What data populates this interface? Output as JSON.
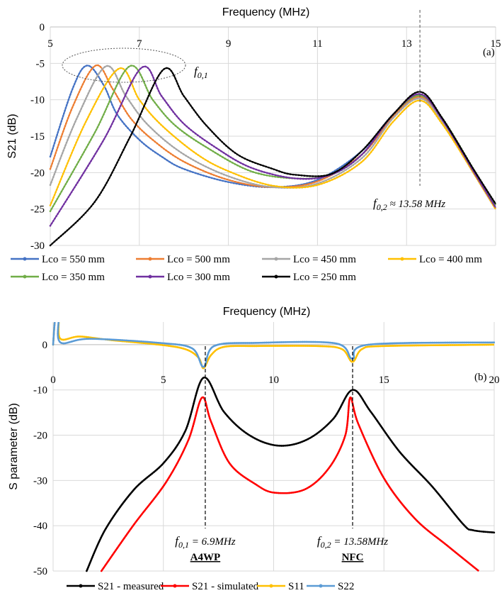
{
  "chart_data": [
    {
      "panel": "(a)",
      "type": "line",
      "title": "Frequency (MHz)",
      "xlabel": "Frequency (MHz)",
      "ylabel": "S21 (dB)",
      "xlim": [
        5,
        15
      ],
      "ylim": [
        -30,
        0
      ],
      "xticks": [
        5,
        7,
        9,
        11,
        13,
        15
      ],
      "yticks": [
        0,
        -5,
        -10,
        -15,
        -20,
        -25,
        -30
      ],
      "grid": true,
      "legend_position": "bottom",
      "annotations": {
        "f01": {
          "symbol": "f",
          "sub": "0,1",
          "rest": ""
        },
        "f02": {
          "symbol": "f",
          "sub": "0,2",
          "rest": " ≈ 13.58 MHz"
        },
        "f02_marker_x": 13.3
      },
      "series": [
        {
          "name": "Lco = 550 mm",
          "color": "#4472c4",
          "x": [
            5,
            5.5,
            5.83,
            6.2,
            6.5,
            7,
            7.5,
            8,
            9,
            10,
            11,
            12,
            12.7,
            13.3,
            13.8,
            14.5,
            15
          ],
          "y": [
            -17.8,
            -8.5,
            -5.3,
            -8,
            -12,
            -15.5,
            -17.8,
            -19.5,
            -21.3,
            -22,
            -21,
            -17,
            -12,
            -9.5,
            -13,
            -20,
            -25
          ]
        },
        {
          "name": "Lco = 500 mm",
          "color": "#ed7d31",
          "x": [
            5,
            5.5,
            6.02,
            6.4,
            6.8,
            7.3,
            8,
            9,
            10,
            11,
            12,
            12.7,
            13.3,
            13.8,
            14.5,
            15
          ],
          "y": [
            -19.5,
            -11,
            -5.3,
            -8.5,
            -12.5,
            -15.5,
            -18.5,
            -21,
            -22,
            -21.2,
            -17.5,
            -12.3,
            -9.6,
            -13,
            -20,
            -25
          ]
        },
        {
          "name": "Lco = 450 mm",
          "color": "#a5a5a5",
          "x": [
            5,
            5.6,
            6.25,
            6.7,
            7.2,
            8,
            9,
            10,
            11,
            12,
            12.7,
            13.3,
            13.8,
            14.5,
            15
          ],
          "y": [
            -21.7,
            -12.5,
            -5.4,
            -9.5,
            -13.5,
            -17.5,
            -20.5,
            -22,
            -21.5,
            -18,
            -12.5,
            -9.8,
            -13,
            -20,
            -25
          ]
        },
        {
          "name": "Lco = 400 mm",
          "color": "#ffc000",
          "x": [
            5,
            5.8,
            6.55,
            7,
            7.5,
            8.3,
            9,
            10,
            11,
            12,
            12.7,
            13.3,
            13.8,
            14.5,
            15
          ],
          "y": [
            -24.5,
            -13,
            -5.7,
            -10,
            -13.5,
            -17.5,
            -19.8,
            -21.8,
            -21.7,
            -18.5,
            -13,
            -10.1,
            -13.3,
            -20,
            -25
          ]
        },
        {
          "name": "Lco = 350 mm",
          "color": "#70ad47",
          "x": [
            5,
            6,
            6.78,
            7.3,
            7.8,
            8.5,
            9.5,
            10.5,
            11.3,
            12,
            12.7,
            13.3,
            13.8,
            14.5,
            15
          ],
          "y": [
            -25.3,
            -14.5,
            -5.4,
            -10,
            -13.5,
            -16.5,
            -19.8,
            -20.8,
            -20.3,
            -17.5,
            -12,
            -9.4,
            -12.5,
            -19.5,
            -24.5
          ]
        },
        {
          "name": "Lco = 300 mm",
          "color": "#7030a0",
          "x": [
            5,
            6.2,
            7.05,
            7.5,
            8,
            8.7,
            9.5,
            10.5,
            11.3,
            12,
            12.7,
            13.3,
            13.8,
            14.5,
            15
          ],
          "y": [
            -27.3,
            -15.5,
            -5.6,
            -9.5,
            -13.3,
            -16.5,
            -19.3,
            -20.8,
            -20.3,
            -17.5,
            -12,
            -9.2,
            -12.7,
            -19.8,
            -24.8
          ]
        },
        {
          "name": "Lco = 250 mm",
          "color": "#000000",
          "x": [
            5,
            6,
            6.8,
            7.55,
            8,
            8.5,
            9.2,
            10,
            10.5,
            11.3,
            12,
            12.7,
            13.3,
            13.8,
            14.5,
            15
          ],
          "y": [
            -30,
            -24,
            -15,
            -5.8,
            -9.5,
            -13.5,
            -17.5,
            -19.5,
            -20.3,
            -20.2,
            -17,
            -12,
            -8.9,
            -12.5,
            -19.5,
            -24.3
          ]
        }
      ]
    },
    {
      "panel": "(b)",
      "type": "line",
      "title": "Frequency (MHz)",
      "xlabel": "Frequency (MHz)",
      "ylabel": "S parameter (dB)",
      "xlim": [
        0,
        20
      ],
      "ylim": [
        -50,
        5
      ],
      "xticks": [
        0,
        5,
        10,
        15,
        20
      ],
      "yticks": [
        0,
        -10,
        -20,
        -30,
        -40,
        -50
      ],
      "grid": true,
      "legend_position": "bottom",
      "annotations": {
        "f01": {
          "symbol": "f",
          "sub": "0,1",
          "rest": " = 6.9MHz",
          "band": "A4WP",
          "x": 6.9
        },
        "f02": {
          "symbol": "f",
          "sub": "0,2",
          "rest": " = 13.58MHz",
          "band": "NFC",
          "x": 13.58
        }
      },
      "series": [
        {
          "name": "S21 - measured",
          "color": "#000000",
          "x": [
            1.52,
            2.37,
            3.67,
            5.0,
            6.0,
            6.82,
            7.74,
            8.9,
            10.2,
            11.5,
            12.7,
            13.57,
            14.4,
            15.7,
            17.2,
            18.6,
            19.05,
            20
          ],
          "y": [
            -50,
            -40.8,
            -32,
            -26.2,
            -19,
            -7.3,
            -14.8,
            -20,
            -22.3,
            -21,
            -16.4,
            -10,
            -14.8,
            -23.6,
            -31.4,
            -39.7,
            -41,
            -41.5
          ]
        },
        {
          "name": "S21 - simulated",
          "color": "#ff0000",
          "x": [
            2.19,
            3.67,
            5.12,
            6.14,
            6.75,
            7.16,
            8.0,
            9.2,
            10.05,
            11.4,
            12.5,
            13.25,
            13.47,
            13.83,
            15.0,
            16.4,
            17.9,
            19.3
          ],
          "y": [
            -50,
            -39.7,
            -30.4,
            -21,
            -11.7,
            -17,
            -26.2,
            -30.9,
            -32.7,
            -32,
            -27.3,
            -20,
            -11.7,
            -17.4,
            -29.5,
            -38.4,
            -44.5,
            -50
          ]
        },
        {
          "name": "S11",
          "color": "#ffc000",
          "x": [
            0,
            0.1,
            0.25,
            0.33,
            1.2,
            2.65,
            4.8,
            6.0,
            6.6,
            6.82,
            7.16,
            7.74,
            9.2,
            12,
            13.1,
            13.57,
            14,
            15,
            20
          ],
          "y": [
            0,
            6,
            6,
            1.3,
            1.8,
            1.0,
            0,
            -1,
            -2.9,
            -5.2,
            -2.3,
            -0.5,
            -0.3,
            -0.3,
            -1,
            -3.8,
            -1,
            -0.3,
            0
          ]
        },
        {
          "name": "S22",
          "color": "#5b9bd5",
          "x": [
            0,
            0.1,
            0.25,
            0.33,
            1.64,
            4.8,
            6.3,
            6.82,
            7.3,
            9.2,
            12.8,
            13.57,
            14.3,
            20
          ],
          "y": [
            0,
            6,
            6,
            0.5,
            1.3,
            0.4,
            -0.8,
            -4.9,
            -0.3,
            0.4,
            0.3,
            -3.1,
            0,
            0.5
          ]
        }
      ]
    }
  ]
}
